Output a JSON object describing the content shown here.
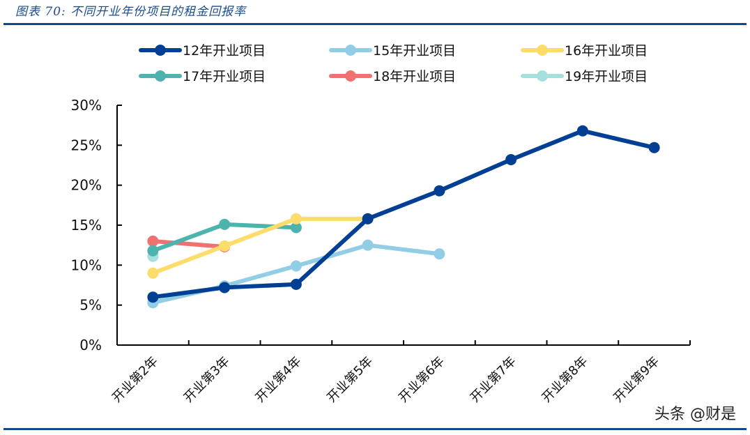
{
  "header": {
    "title": "图表 70:  不同开业年份项目的租金回报率"
  },
  "watermark": "头条 @财是",
  "chart_data": {
    "type": "line",
    "title": "不同开业年份项目的租金回报率",
    "xlabel": "",
    "ylabel": "",
    "categories": [
      "开业第2年",
      "开业第3年",
      "开业第4年",
      "开业第5年",
      "开业第6年",
      "开业第7年",
      "开业第8年",
      "开业第9年"
    ],
    "y_ticks": [
      "0%",
      "5%",
      "10%",
      "15%",
      "20%",
      "25%",
      "30%"
    ],
    "ylim": [
      0,
      30
    ],
    "grid": false,
    "legend_position": "top",
    "series": [
      {
        "name": "12年开业项目",
        "color": "#003f94",
        "values": [
          6.0,
          7.2,
          7.6,
          15.8,
          19.3,
          23.2,
          26.8,
          24.7
        ]
      },
      {
        "name": "15年开业项目",
        "color": "#92cde6",
        "values": [
          5.3,
          7.4,
          9.9,
          12.5,
          11.4,
          null,
          null,
          null
        ]
      },
      {
        "name": "16年开业项目",
        "color": "#fcdc6a",
        "values": [
          9.0,
          12.4,
          15.8,
          15.8,
          null,
          null,
          null,
          null
        ]
      },
      {
        "name": "17年开业项目",
        "color": "#4db3ad",
        "values": [
          11.8,
          15.1,
          14.7,
          null,
          null,
          null,
          null,
          null
        ]
      },
      {
        "name": "18年开业项目",
        "color": "#ef7170",
        "values": [
          13.0,
          12.3,
          null,
          null,
          null,
          null,
          null,
          null
        ]
      },
      {
        "name": "19年开业项目",
        "color": "#a4e1de",
        "values": [
          11.1,
          null,
          null,
          null,
          null,
          null,
          null,
          null
        ]
      }
    ]
  }
}
